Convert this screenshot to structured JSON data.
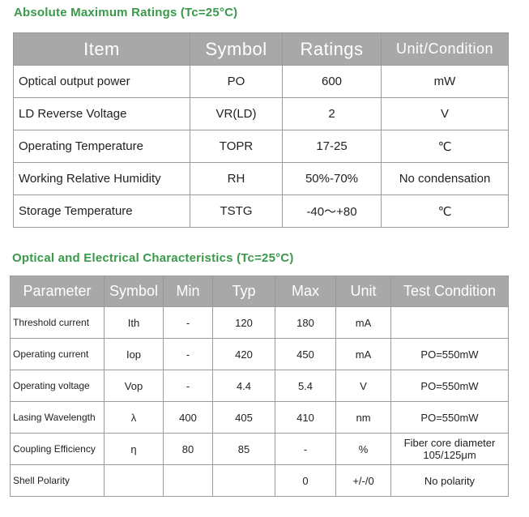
{
  "section1": {
    "title": "Absolute Maximum Ratings (Tc=25°C)",
    "headers": [
      "Item",
      "Symbol",
      "Ratings",
      "Unit/Condition"
    ],
    "rows": [
      [
        "Optical output power",
        "PO",
        "600",
        "mW"
      ],
      [
        "LD Reverse Voltage",
        "VR(LD)",
        "2",
        "V"
      ],
      [
        "Operating Temperature",
        "TOPR",
        "17-25",
        "℃"
      ],
      [
        "Working Relative Humidity",
        "RH",
        "50%-70%",
        "No condensation"
      ],
      [
        "Storage Temperature",
        "TSTG",
        "-40～+80",
        "℃"
      ]
    ]
  },
  "section2": {
    "title": "Optical and Electrical Characteristics (Tc=25°C)",
    "headers": [
      "Parameter",
      "Symbol",
      "Min",
      "Typ",
      "Max",
      "Unit",
      "Test Condition"
    ],
    "rows": [
      [
        "Threshold current",
        "Ith",
        "-",
        "120",
        "180",
        "mA",
        ""
      ],
      [
        "Operating current",
        "Iop",
        "-",
        "420",
        "450",
        "mA",
        "PO=550mW"
      ],
      [
        "Operating voltage",
        "Vop",
        "-",
        "4.4",
        "5.4",
        "V",
        "PO=550mW"
      ],
      [
        "Lasing Wavelength",
        "λ",
        "400",
        "405",
        "410",
        "nm",
        "PO=550mW"
      ],
      [
        "Coupling Efficiency",
        "η",
        "80",
        "85",
        "-",
        "%",
        "Fiber core diameter 105/125μm"
      ],
      [
        "Shell Polarity",
        "",
        "",
        "",
        "0",
        "+/-/0",
        "No polarity"
      ]
    ]
  }
}
